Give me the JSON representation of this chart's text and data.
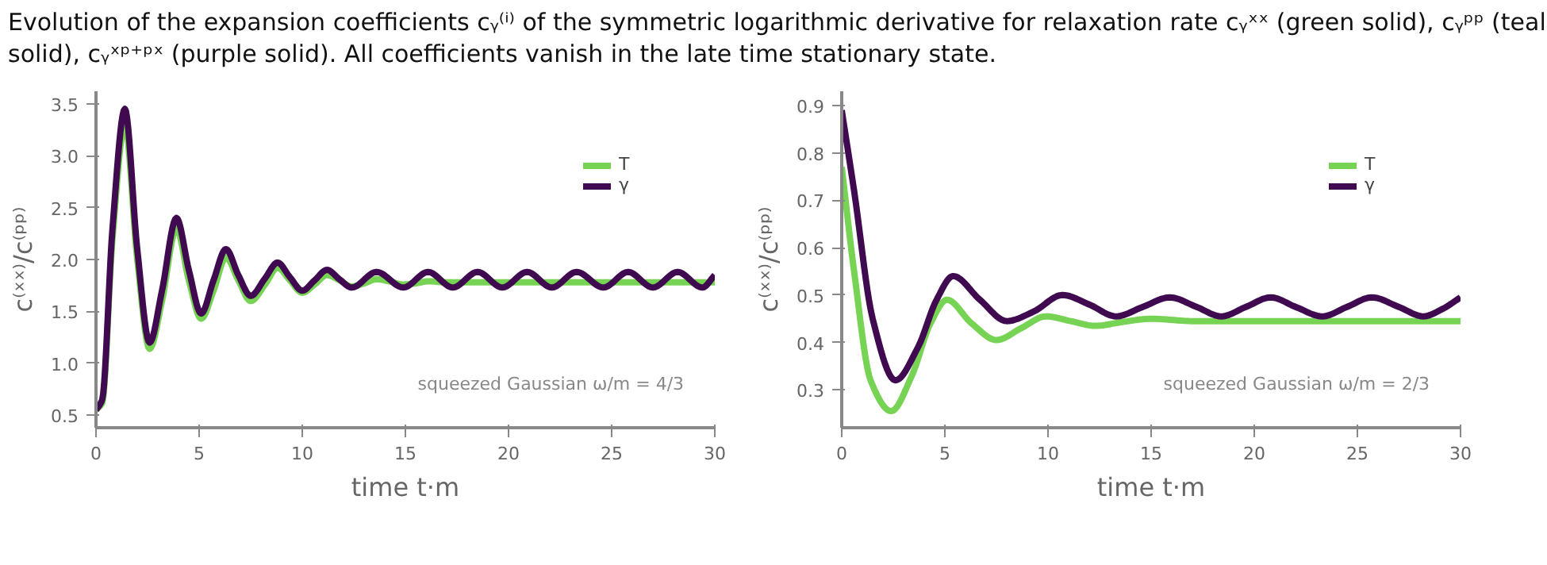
{
  "chart_data": [
    {
      "type": "line",
      "annotations": [
        "Evolution of the expansion coefficients cᵧ⁽ⁱ⁾ of the symmetric logarithmic derivative for relaxation rate cᵧˣˣ (green solid), cᵧᵖᵖ (teal solid), cᵧˣᵖ⁺ᵖˣ (purple solid). All coefficients vanish in the late time stationary state.",
        "squeezed Gaussian ω/m = 4/3"
      ],
      "xlabel": "time t·m",
      "ylabel": "c⁽ˣˣ⁾/c⁽ᵖᵖ⁾",
      "xlim": [
        0,
        30
      ],
      "ylim": [
        0.38,
        3.62
      ],
      "xticks": [
        0,
        5,
        10,
        15,
        20,
        25,
        30
      ],
      "yticks": [
        0.5,
        {
          "value": 1,
          "label": "1.0"
        },
        1.5,
        {
          "value": 2,
          "label": "2.0"
        },
        2.5,
        {
          "value": 3,
          "label": "3.0"
        },
        3.5
      ],
      "grid": false,
      "legend": "top right",
      "marker": "none",
      "line_style": "solid",
      "series": [
        {
          "name": "T",
          "color": "#77d353",
          "x": [
            0,
            0.3,
            0.8,
            1.4,
            2.0,
            2.6,
            3.2,
            3.9,
            4.5,
            5.1,
            5.7,
            6.3,
            6.9,
            7.5,
            8.2,
            8.8,
            9.4,
            10,
            10.6,
            11.2,
            11.8,
            12.4,
            13,
            13.6,
            14.2,
            14.9,
            15.5,
            16.1,
            17,
            18,
            20,
            25,
            30
          ],
          "values": [
            0.55,
            0.62,
            2.2,
            3.3,
            2.0,
            1.14,
            1.6,
            2.3,
            1.8,
            1.43,
            1.7,
            2.02,
            1.8,
            1.6,
            1.76,
            1.92,
            1.8,
            1.68,
            1.76,
            1.85,
            1.8,
            1.74,
            1.77,
            1.81,
            1.79,
            1.76,
            1.77,
            1.79,
            1.78,
            1.78,
            1.78,
            1.78,
            1.78
          ]
        },
        {
          "name": "γ",
          "color": "#400a50",
          "x": [
            0,
            0.3,
            0.8,
            1.4,
            2.0,
            2.6,
            3.2,
            3.9,
            4.5,
            5.1,
            5.7,
            6.3,
            6.9,
            7.5,
            8.2,
            8.8,
            9.4,
            10,
            10.6,
            11.2,
            11.8,
            12.4,
            13.6,
            14.9,
            16.1,
            17.3,
            18.5,
            19.7,
            20.9,
            22.1,
            23.3,
            24.6,
            25.8,
            27,
            28.2,
            29.4,
            30
          ],
          "values": [
            0.55,
            0.65,
            2.3,
            3.45,
            2.1,
            1.2,
            1.7,
            2.4,
            1.9,
            1.48,
            1.8,
            2.1,
            1.85,
            1.65,
            1.82,
            1.97,
            1.83,
            1.7,
            1.8,
            1.9,
            1.81,
            1.73,
            1.88,
            1.73,
            1.88,
            1.73,
            1.88,
            1.73,
            1.88,
            1.73,
            1.88,
            1.73,
            1.88,
            1.73,
            1.88,
            1.73,
            1.85
          ]
        }
      ]
    },
    {
      "type": "line",
      "annotations": [
        "squeezed Gaussian ω/m = 2/3"
      ],
      "xlabel": "time t·m",
      "ylabel": "c⁽ˣˣ⁾/c⁽ᵖᵖ⁾",
      "xlim": [
        0,
        30
      ],
      "ylim": [
        0.22,
        0.93
      ],
      "xticks": [
        0,
        5,
        10,
        15,
        20,
        25,
        30
      ],
      "yticks": [
        0.3,
        0.4,
        0.5,
        0.6,
        0.7,
        0.8,
        0.9
      ],
      "grid": false,
      "legend": "top right",
      "marker": "none",
      "line_style": "solid",
      "series": [
        {
          "name": "T",
          "color": "#77d353",
          "x": [
            0,
            0.6,
            1.4,
            2.4,
            3.4,
            4.3,
            5.1,
            6.3,
            7.5,
            8.7,
            9.9,
            11.1,
            12.3,
            13.6,
            15,
            17,
            20,
            25,
            30
          ],
          "values": [
            0.77,
            0.55,
            0.32,
            0.255,
            0.33,
            0.44,
            0.49,
            0.44,
            0.405,
            0.43,
            0.455,
            0.445,
            0.435,
            0.443,
            0.45,
            0.445,
            0.445,
            0.445,
            0.445
          ]
        },
        {
          "name": "γ",
          "color": "#400a50",
          "x": [
            0,
            0.6,
            1.5,
            2.6,
            3.7,
            4.6,
            5.4,
            6.7,
            8,
            9.3,
            10.7,
            12,
            13.3,
            14.6,
            15.9,
            17.2,
            18.4,
            19.6,
            20.8,
            22,
            23.3,
            24.5,
            25.7,
            27,
            28.2,
            29.1,
            30
          ],
          "values": [
            0.89,
            0.72,
            0.45,
            0.32,
            0.39,
            0.49,
            0.54,
            0.49,
            0.445,
            0.465,
            0.5,
            0.48,
            0.455,
            0.475,
            0.495,
            0.475,
            0.455,
            0.475,
            0.495,
            0.475,
            0.455,
            0.475,
            0.495,
            0.475,
            0.455,
            0.47,
            0.495
          ]
        }
      ]
    }
  ]
}
